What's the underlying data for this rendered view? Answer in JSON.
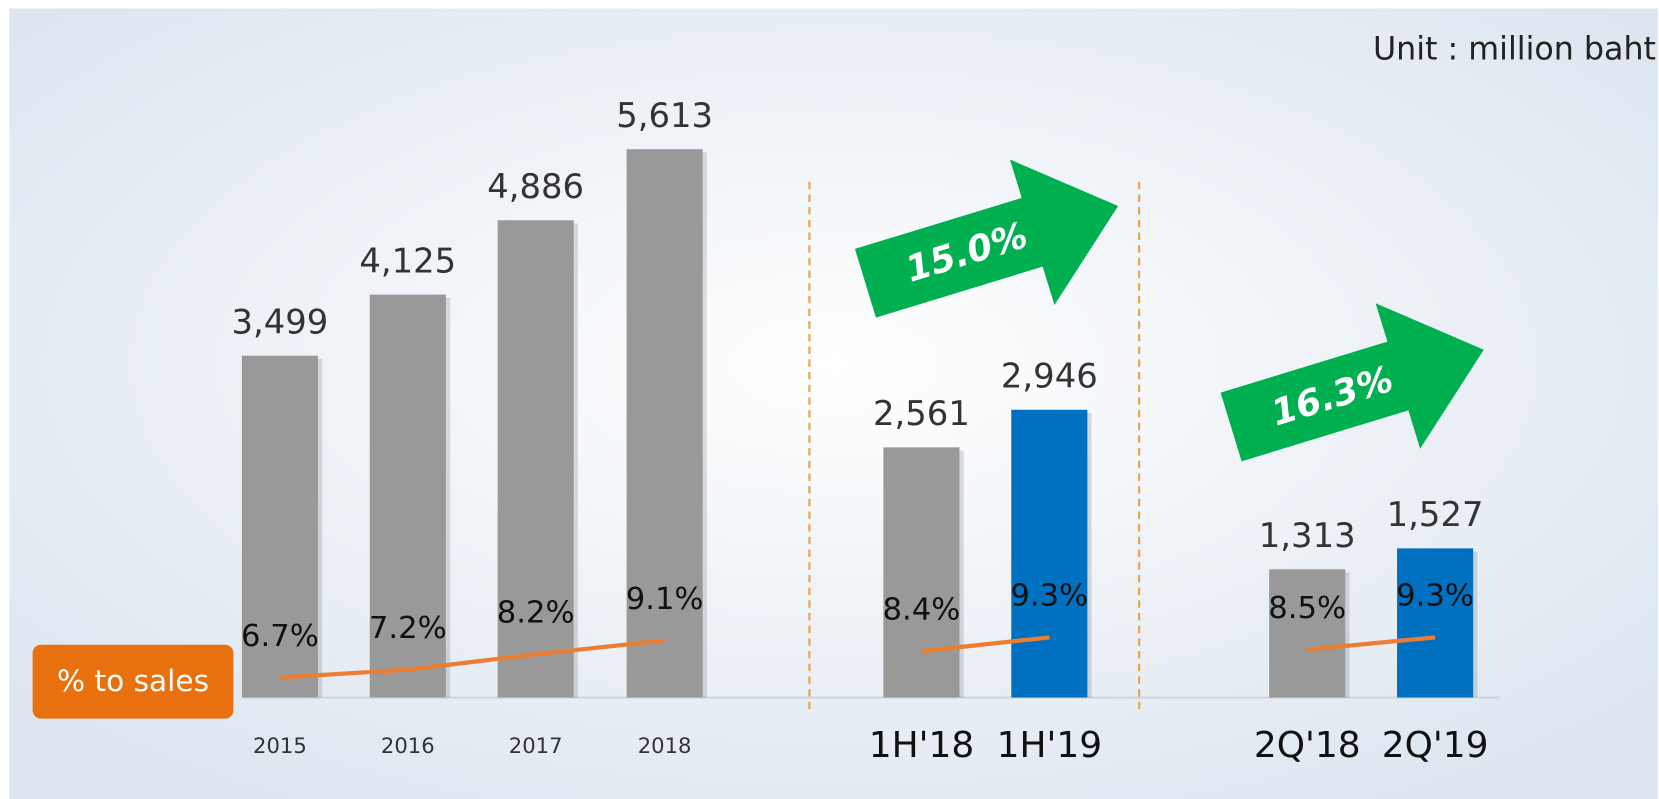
{
  "chart_data": {
    "type": "bar",
    "unit_label": "Unit : million baht",
    "categories": [
      "2015",
      "2016",
      "2017",
      "2018",
      "1H'18",
      "1H'19",
      "2Q'18",
      "2Q'19"
    ],
    "ylim": [
      0,
      7000
    ],
    "y2lim": [
      5.4,
      49.7
    ],
    "series": [
      {
        "type": "bar",
        "values": [
          3499,
          4125,
          4886,
          5613,
          2561,
          2946,
          1313,
          1527
        ],
        "value_labels": [
          "3,499",
          "4,125",
          "4,886",
          "5,613",
          "2,561",
          "2,946",
          "1,313",
          "1,527"
        ],
        "colors": [
          "#999999",
          "#999999",
          "#999999",
          "#999999",
          "#999999",
          "#0070c0",
          "#999999",
          "#0070c0"
        ]
      },
      {
        "type": "line",
        "name": "% to sales",
        "axis": "y2",
        "color": "#ed7d31",
        "values": [
          6.7,
          7.2,
          8.2,
          9.1,
          8.4,
          9.3,
          8.5,
          9.3
        ],
        "value_labels": [
          "6.7%",
          "7.2%",
          "8.2%",
          "9.1%",
          "8.4%",
          "9.3%",
          "8.5%",
          "9.3%"
        ]
      }
    ],
    "annotations": [
      {
        "text": "15.0%",
        "color": "#00b050"
      },
      {
        "text": "16.3%",
        "color": "#00b050"
      }
    ]
  }
}
